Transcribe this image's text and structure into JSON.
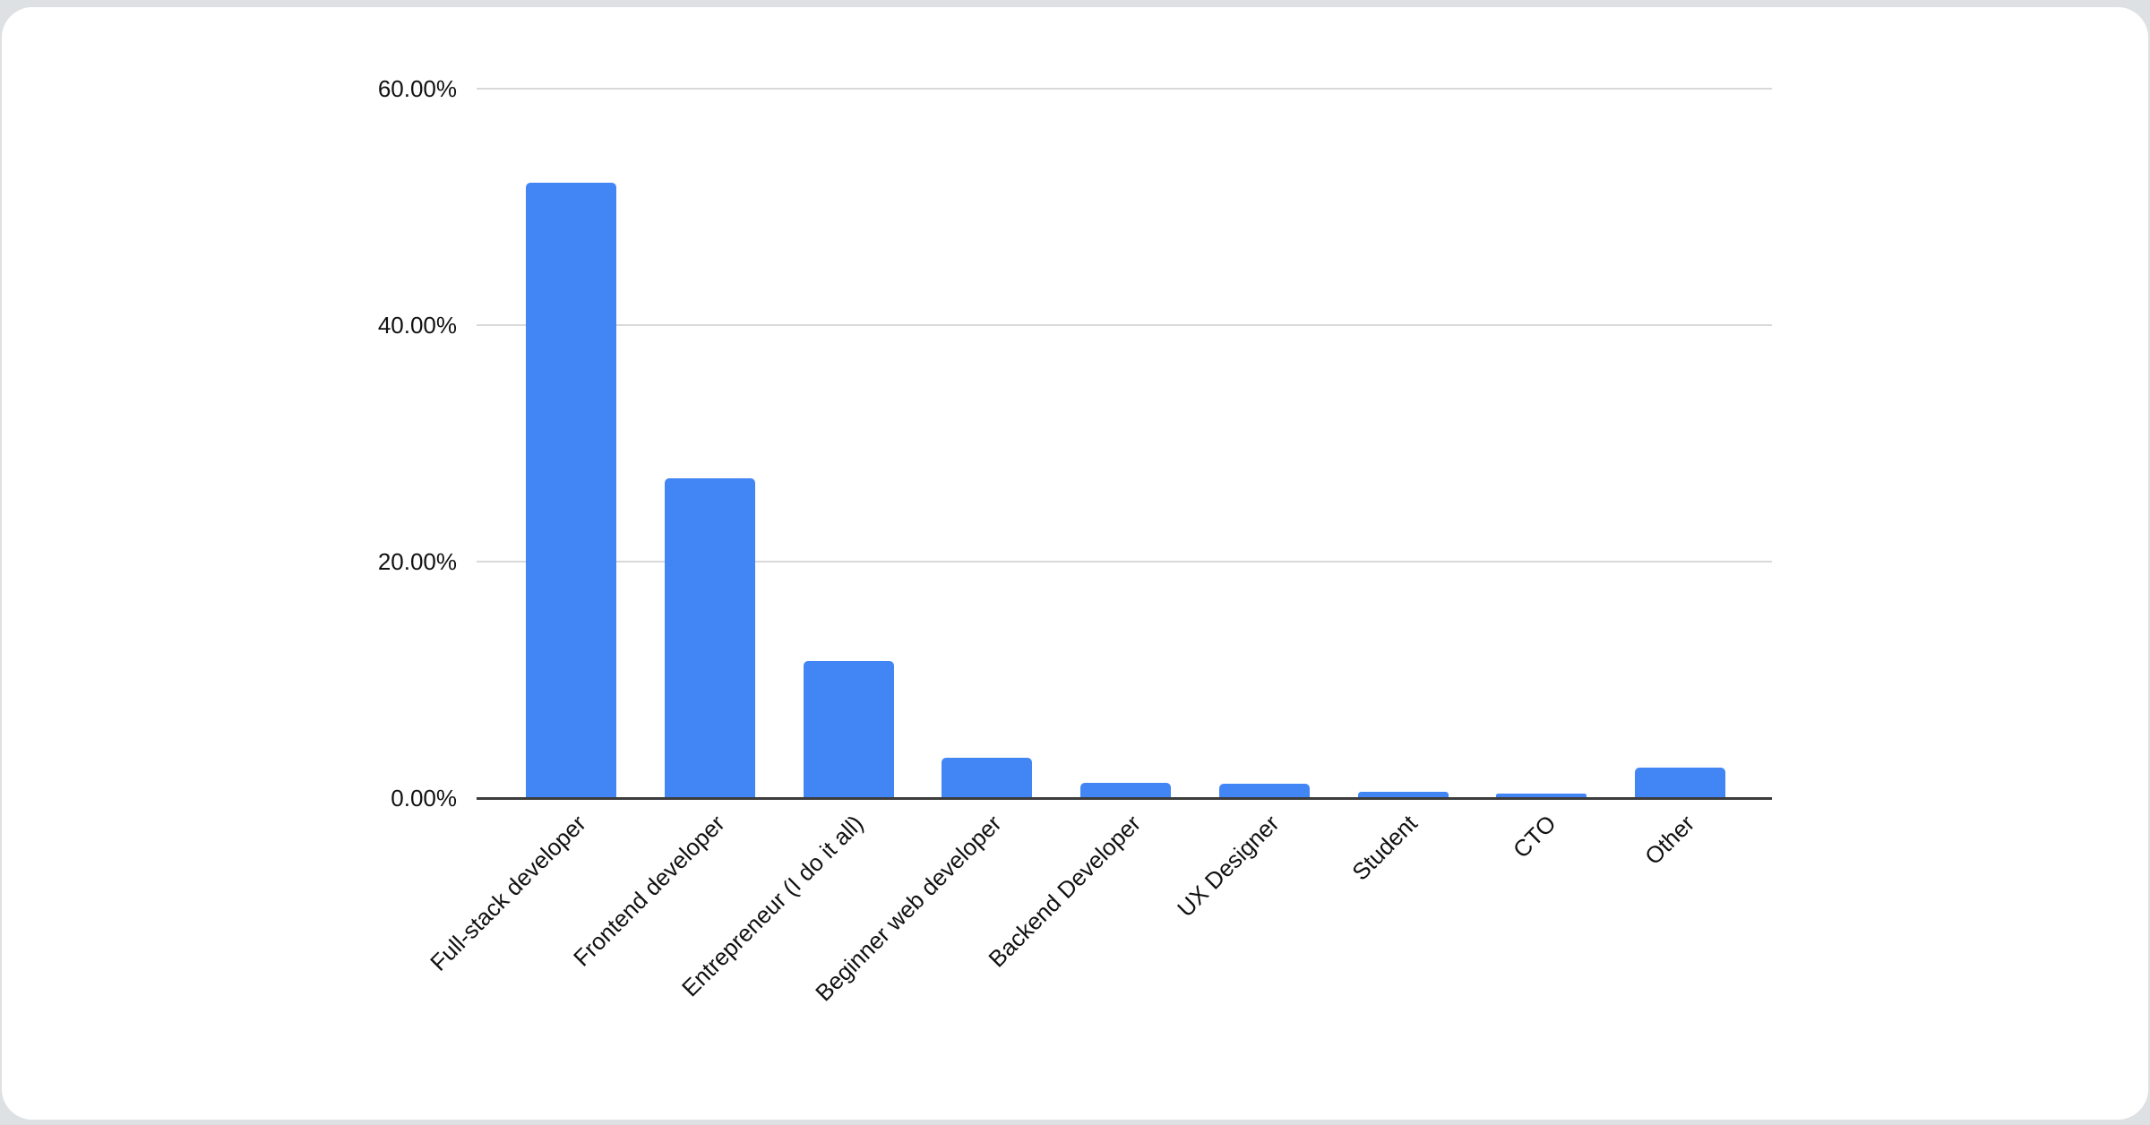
{
  "page": {
    "background_color": "#dee1e3",
    "card_color": "#ffffff"
  },
  "chart_data": {
    "type": "bar",
    "title": "",
    "xlabel": "",
    "ylabel": "",
    "categories": [
      "Full-stack developer",
      "Frontend developer",
      "Entrepreneur (I do it all)",
      "Beginner web developer",
      "Backend Developer",
      "UX Designer",
      "Student",
      "CTO",
      "Other"
    ],
    "values": [
      52,
      27,
      11.6,
      3.4,
      1.3,
      1.2,
      0.5,
      0.35,
      2.6
    ],
    "value_unit": "percent",
    "ylim": [
      0,
      60
    ],
    "y_ticks": [
      {
        "label": "60.00%",
        "value": 60
      },
      {
        "label": "40.00%",
        "value": 40
      },
      {
        "label": "20.00%",
        "value": 20
      },
      {
        "label": "0.00%",
        "value": 0
      }
    ],
    "x_label_rotation_deg": -45,
    "grid": "horizontal",
    "legend": "none",
    "bar_color": "#4285f4",
    "gridline_color": "#d9d9d9",
    "axis_line_color": "#3c3c3c",
    "tick_label_color": "#111111"
  }
}
